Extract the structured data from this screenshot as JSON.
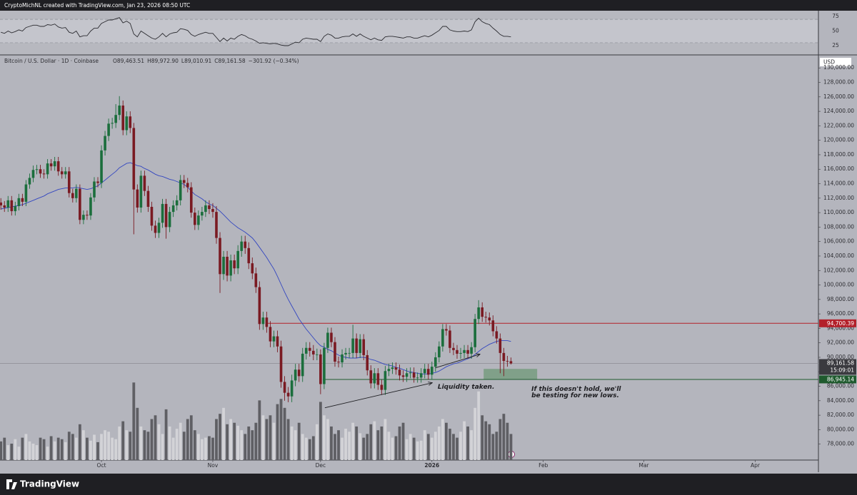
{
  "header": {
    "credit": "CryptoMichNL created with TradingView.com, Jan 23, 2026 08:50 UTC"
  },
  "footer": {
    "brand": "TradingView"
  },
  "chart_data": {
    "type": "candlestick",
    "legend": {
      "symbol": "Bitcoin / U.S. Dollar · 1D · Coinbase",
      "values": [
        "O89,463.51",
        "H89,972.90",
        "L89,010.91",
        "C89,161.58",
        "−301.92 (−0.34%)"
      ]
    },
    "currency": "USD",
    "up_color": "#1b6e3c",
    "down_color": "#7a1a22",
    "volume_up_color": "#d3d3d7",
    "volume_down_color": "#5f5f64",
    "ma_color": "#3346c0",
    "rsi_color": "#2b2b30",
    "xlim": [
      -0.24,
      227.4
    ],
    "xticks": [
      {
        "value": 28,
        "label": "Oct"
      },
      {
        "value": 59,
        "label": "Nov"
      },
      {
        "value": 89,
        "label": "Dec"
      },
      {
        "value": 120,
        "label": "2026"
      },
      {
        "value": 151,
        "label": "Feb"
      },
      {
        "value": 179,
        "label": "Mar"
      },
      {
        "value": 210,
        "label": "Apr"
      }
    ],
    "ylim": [
      75800,
      131700
    ],
    "yticks": [
      {
        "value": 130000,
        "label": "130,000.00"
      },
      {
        "value": 128000,
        "label": "128,000.00"
      },
      {
        "value": 126000,
        "label": "126,000.00"
      },
      {
        "value": 124000,
        "label": "124,000.00"
      },
      {
        "value": 122000,
        "label": "122,000.00"
      },
      {
        "value": 120000,
        "label": "120,000.00"
      },
      {
        "value": 118000,
        "label": "118,000.00"
      },
      {
        "value": 116000,
        "label": "116,000.00"
      },
      {
        "value": 114000,
        "label": "114,000.00"
      },
      {
        "value": 112000,
        "label": "112,000.00"
      },
      {
        "value": 110000,
        "label": "110,000.00"
      },
      {
        "value": 108000,
        "label": "108,000.00"
      },
      {
        "value": 106000,
        "label": "106,000.00"
      },
      {
        "value": 104000,
        "label": "104,000.00"
      },
      {
        "value": 102000,
        "label": "102,000.00"
      },
      {
        "value": 100000,
        "label": "100,000.00"
      },
      {
        "value": 98000,
        "label": "98,000.00"
      },
      {
        "value": 96000,
        "label": "96,000.00"
      },
      {
        "value": 94000,
        "label": "94,000.00"
      },
      {
        "value": 92000,
        "label": "92,000.00"
      },
      {
        "value": 90000,
        "label": "90,000.00"
      },
      {
        "value": 88000,
        "label": "88,000.00"
      },
      {
        "value": 86000,
        "label": "86,000.00"
      },
      {
        "value": 84000,
        "label": "84,000.00"
      },
      {
        "value": 82000,
        "label": "82,000.00"
      },
      {
        "value": 80000,
        "label": "80,000.00"
      },
      {
        "value": 78000,
        "label": "78,000.00"
      }
    ],
    "open": [
      111400,
      111000,
      110700,
      111700,
      110200,
      110900,
      112000,
      111500,
      113900,
      114800,
      115900,
      116000,
      115400,
      115300,
      116800,
      116400,
      117100,
      115700,
      115300,
      115700,
      112700,
      112000,
      113300,
      109000,
      109700,
      109600,
      112100,
      114300,
      114100,
      118600,
      120600,
      122300,
      122400,
      123500,
      124800,
      121400,
      123300,
      121700,
      113200,
      110700,
      115100,
      113000,
      110800,
      108200,
      107200,
      108600,
      111200,
      108000,
      110100,
      111000,
      111700,
      114500,
      114100,
      113500,
      110000,
      108300,
      109600,
      110100,
      111000,
      110500,
      110100,
      106500,
      101500,
      103900,
      101300,
      103400,
      102300,
      104700,
      106000,
      105100,
      103000,
      101600,
      99700,
      94600,
      95500,
      94200,
      92200,
      92900,
      91500,
      86600,
      85100,
      84600,
      86800,
      88300,
      87400,
      90500,
      91300,
      90900,
      90400,
      90400,
      86300,
      91300,
      93400,
      92100,
      89400,
      89300,
      90400,
      90600,
      90600,
      92600,
      90600,
      92500,
      90300,
      88200,
      86400,
      87800,
      86200,
      85500,
      88100,
      88400,
      88600,
      88300,
      87500,
      87300,
      87800,
      87900,
      87200,
      87200,
      87800,
      88400,
      87600,
      88700,
      90000,
      91500,
      93900,
      93700,
      91300,
      91000,
      90500,
      90600,
      91000,
      90500,
      91400,
      95300,
      96900,
      95600,
      95500,
      95100,
      93600,
      92600,
      90600,
      89500,
      89463.51
    ],
    "high": [
      112000,
      111600,
      112300,
      112300,
      111500,
      112600,
      112600,
      114500,
      115400,
      116500,
      116600,
      116600,
      116000,
      117400,
      117400,
      117700,
      117700,
      116300,
      116300,
      116300,
      113300,
      113900,
      113900,
      110300,
      110300,
      112700,
      114900,
      114900,
      119300,
      121300,
      123000,
      123100,
      125000,
      126100,
      125500,
      124000,
      124000,
      122400,
      113900,
      115800,
      115800,
      113700,
      111500,
      108900,
      109300,
      111900,
      111900,
      110800,
      111700,
      112400,
      115200,
      115200,
      114800,
      114200,
      110700,
      110300,
      110800,
      111700,
      111700,
      111300,
      110900,
      107300,
      104700,
      104700,
      104200,
      104200,
      105500,
      106800,
      106800,
      105900,
      103800,
      102400,
      100500,
      96300,
      96300,
      95000,
      93700,
      93700,
      92300,
      87400,
      85900,
      87600,
      89100,
      89100,
      91300,
      92100,
      92100,
      91700,
      91200,
      91100,
      92000,
      94100,
      94100,
      92800,
      90100,
      91100,
      91300,
      91300,
      94500,
      93300,
      93200,
      93200,
      91000,
      88900,
      88500,
      88500,
      86900,
      88800,
      89100,
      89300,
      89300,
      89000,
      88200,
      88500,
      88600,
      88600,
      87900,
      88500,
      89100,
      89100,
      89400,
      90700,
      92200,
      94600,
      94600,
      94400,
      92000,
      91700,
      91300,
      91700,
      91700,
      92100,
      96000,
      97900,
      97600,
      96300,
      96200,
      95800,
      94300,
      93300,
      91300,
      90200,
      89972.9
    ],
    "low": [
      110400,
      110100,
      110100,
      109600,
      109600,
      110300,
      110900,
      110900,
      113300,
      114200,
      115300,
      114800,
      114700,
      114700,
      115800,
      115800,
      115100,
      114700,
      114700,
      112100,
      111400,
      111400,
      108400,
      108400,
      109000,
      109000,
      111500,
      113500,
      113400,
      117900,
      119900,
      121600,
      121700,
      122800,
      120700,
      120700,
      121000,
      107000,
      110000,
      110000,
      112300,
      110100,
      107500,
      106500,
      106500,
      107900,
      106400,
      107300,
      109400,
      110300,
      111000,
      113400,
      112800,
      109300,
      107600,
      107600,
      108900,
      109400,
      109800,
      109300,
      105700,
      98900,
      100700,
      100500,
      100500,
      101500,
      101500,
      103900,
      104300,
      102200,
      100800,
      98900,
      93800,
      93800,
      93400,
      91400,
      91400,
      90700,
      85800,
      84000,
      83800,
      83800,
      86000,
      86600,
      86600,
      89700,
      90100,
      89600,
      89600,
      84900,
      85600,
      90600,
      91400,
      88700,
      88600,
      88600,
      89700,
      89900,
      89900,
      89900,
      89900,
      89600,
      87500,
      85700,
      85700,
      85500,
      84800,
      84800,
      87400,
      87700,
      87600,
      86800,
      86600,
      86600,
      87100,
      86500,
      86500,
      86500,
      87100,
      86900,
      86900,
      88000,
      89300,
      90800,
      93000,
      90600,
      90300,
      89800,
      89800,
      89900,
      89800,
      89800,
      90700,
      94600,
      94900,
      94800,
      94400,
      92900,
      91900,
      87800,
      87400,
      88700,
      89010.91
    ],
    "close": [
      111000,
      110700,
      111700,
      110200,
      110900,
      112000,
      111500,
      113900,
      114800,
      115900,
      116000,
      115400,
      115300,
      116800,
      116400,
      117100,
      115700,
      115300,
      115700,
      112700,
      112000,
      113300,
      109000,
      109700,
      109600,
      112100,
      114300,
      114100,
      118600,
      120600,
      122300,
      122400,
      123500,
      124800,
      121400,
      123300,
      121700,
      113200,
      110700,
      115100,
      113000,
      110800,
      108200,
      107200,
      108600,
      111200,
      108000,
      110100,
      111000,
      111700,
      114500,
      114100,
      113500,
      110000,
      108300,
      109600,
      110100,
      111000,
      110500,
      110100,
      106500,
      101500,
      103900,
      101300,
      103400,
      102300,
      104700,
      106000,
      105100,
      103000,
      101600,
      99700,
      94600,
      95500,
      94200,
      92200,
      92900,
      91500,
      86600,
      85100,
      84600,
      86800,
      88300,
      87400,
      90500,
      91300,
      90900,
      90400,
      90400,
      86300,
      91300,
      93400,
      92100,
      89400,
      89300,
      90400,
      90600,
      90600,
      92600,
      90600,
      92500,
      90300,
      88200,
      86400,
      87800,
      86200,
      85500,
      88100,
      88400,
      88600,
      88300,
      87500,
      87300,
      87800,
      87900,
      87200,
      87200,
      87800,
      88400,
      87600,
      88700,
      90000,
      91500,
      93900,
      93700,
      91300,
      91000,
      90500,
      90600,
      91000,
      90500,
      91400,
      95300,
      96900,
      95600,
      95500,
      95100,
      93600,
      92600,
      90600,
      89500,
      89463.51,
      89161.58
    ],
    "ma": [
      110500,
      110600,
      110700,
      110800,
      110900,
      111000,
      111100,
      111300,
      111500,
      111700,
      111900,
      112100,
      112300,
      112600,
      112800,
      113000,
      113200,
      113300,
      113400,
      113400,
      113400,
      113500,
      113400,
      113300,
      113200,
      113300,
      113500,
      113700,
      114100,
      114500,
      114900,
      115300,
      115700,
      116200,
      116500,
      116800,
      116900,
      116700,
      116500,
      116400,
      116100,
      115900,
      115600,
      115300,
      115100,
      115000,
      114800,
      114600,
      114500,
      114300,
      114100,
      113900,
      113500,
      113000,
      112500,
      112200,
      111900,
      111500,
      111200,
      111000,
      110600,
      110200,
      109700,
      109200,
      108700,
      108300,
      107900,
      107600,
      107300,
      106900,
      106500,
      105900,
      105200,
      104500,
      103800,
      103000,
      102200,
      101200,
      100100,
      99000,
      98000,
      97100,
      96200,
      95300,
      94600,
      93900,
      93300,
      92700,
      92100,
      91600,
      91400,
      91100,
      90900,
      90600,
      90300,
      90100,
      90000,
      89900,
      89900,
      89900,
      90000,
      90000,
      89900,
      89700,
      89600,
      89400,
      89200,
      89000,
      88900,
      88800,
      88600,
      88500,
      88300,
      88100,
      88000,
      87900,
      87800,
      87700,
      87700,
      87700,
      87800,
      87900,
      88100,
      88400,
      88700,
      88900,
      89100,
      89200,
      89400,
      89600,
      89800,
      90000,
      90400,
      90800,
      91200,
      91500,
      91800,
      92000,
      92200,
      92300,
      92300,
      92300,
      92200
    ],
    "volume": [
      25,
      30,
      20,
      22,
      28,
      18,
      30,
      35,
      25,
      22,
      20,
      30,
      28,
      18,
      32,
      25,
      30,
      28,
      24,
      38,
      35,
      30,
      48,
      40,
      30,
      26,
      34,
      24,
      35,
      40,
      38,
      30,
      28,
      45,
      52,
      40,
      38,
      104,
      70,
      45,
      40,
      38,
      55,
      60,
      48,
      35,
      68,
      45,
      30,
      42,
      50,
      38,
      55,
      60,
      40,
      35,
      28,
      30,
      32,
      30,
      55,
      62,
      70,
      48,
      55,
      50,
      46,
      40,
      35,
      45,
      40,
      50,
      80,
      60,
      55,
      60,
      50,
      75,
      82,
      70,
      55,
      45,
      40,
      50,
      35,
      30,
      28,
      32,
      48,
      78,
      60,
      55,
      45,
      35,
      40,
      30,
      42,
      38,
      50,
      45,
      36,
      30,
      35,
      48,
      52,
      40,
      45,
      55,
      38,
      30,
      32,
      45,
      50,
      28,
      35,
      30,
      25,
      26,
      40,
      35,
      30,
      38,
      45,
      55,
      50,
      42,
      35,
      30,
      38,
      52,
      45,
      40,
      70,
      92,
      60,
      52,
      48,
      35,
      38,
      55,
      62,
      50,
      35
    ],
    "volume_ylim": [
      0,
      110
    ],
    "rsi": [
      48,
      46,
      50,
      47,
      49,
      52,
      50,
      56,
      58,
      60,
      60,
      58,
      58,
      61,
      60,
      62,
      57,
      55,
      56,
      48,
      46,
      50,
      40,
      42,
      42,
      50,
      55,
      55,
      63,
      66,
      69,
      69,
      71,
      73,
      64,
      67,
      63,
      45,
      40,
      50,
      46,
      42,
      38,
      36,
      40,
      46,
      40,
      45,
      47,
      48,
      54,
      53,
      51,
      44,
      41,
      44,
      46,
      48,
      46,
      46,
      39,
      32,
      38,
      33,
      38,
      36,
      41,
      44,
      42,
      38,
      36,
      33,
      29,
      30,
      29,
      28,
      29,
      28,
      26,
      25,
      25,
      28,
      31,
      30,
      36,
      38,
      37,
      36,
      36,
      32,
      41,
      45,
      43,
      38,
      38,
      40,
      41,
      41,
      45,
      41,
      45,
      41,
      38,
      35,
      38,
      35,
      34,
      40,
      41,
      41,
      40,
      39,
      38,
      40,
      40,
      38,
      38,
      40,
      42,
      40,
      43,
      47,
      51,
      58,
      58,
      52,
      50,
      49,
      49,
      50,
      49,
      52,
      66,
      72,
      66,
      63,
      61,
      55,
      50,
      44,
      41,
      41,
      40
    ],
    "rsi_ylim": [
      11.6,
      84.8
    ],
    "rsi_ticks": [
      75,
      50,
      25
    ],
    "rsi_band": [
      30,
      70
    ],
    "levels": [
      {
        "value": 94700.39,
        "label": "94,700.39",
        "color": "#b3202a",
        "from": 74.3
      },
      {
        "value": 86945.14,
        "label": "86,945.14",
        "color": "#1f5a2e",
        "from": 89.6
      }
    ],
    "last": {
      "label": "89,161.58",
      "countdown": "15:09:01",
      "color": "#3a3a3f"
    },
    "zone": {
      "x": [
        134.4,
        149.3
      ],
      "y": [
        86900,
        88400
      ],
      "color": "#6f9a78"
    },
    "arrows": [
      {
        "x": [
          90.2,
          120.1
        ],
        "y": [
          83030,
          86480
        ]
      },
      {
        "x": [
          121,
          133.4
        ],
        "y": [
          88550,
          90430
        ]
      }
    ],
    "annotations": [
      {
        "text": "Liquidity taken.",
        "x": 121.6,
        "y": 85890
      },
      {
        "text": "If this doesn't hold, we'll",
        "x": 147.7,
        "y": 85590
      },
      {
        "text": "be testing for new lows.",
        "x": 147.7,
        "y": 84700
      }
    ]
  }
}
